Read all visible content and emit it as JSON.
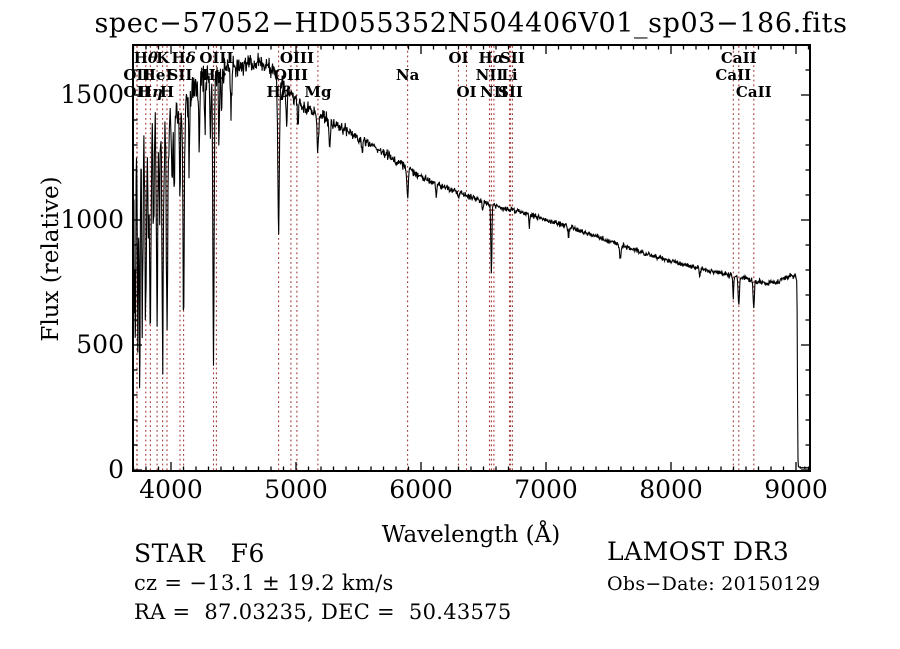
{
  "title": "spec−57052−HD055352N504406V01_sp03−186.fits",
  "annotations": {
    "class_label": "STAR   F6",
    "cz": "cz = −13.1 ± 19.2 km/s",
    "radec": "RA =  87.03235, DEC =  50.43575",
    "survey": "LAMOST DR3",
    "obs_date": "Obs−Date: 20150129"
  },
  "chart_data": {
    "type": "line",
    "title": "spec−57052−HD055352N504406V01_sp03−186.fits",
    "xlabel": "Wavelength (Å)",
    "ylabel": "Flux (relative)",
    "xlim": [
      3696,
      9112
    ],
    "ylim": [
      0,
      1700
    ],
    "x_major_ticks": [
      4000,
      5000,
      6000,
      7000,
      8000,
      9000
    ],
    "x_minor_step": 100,
    "y_major_ticks": [
      0,
      500,
      1000,
      1500
    ],
    "y_minor_step": 100,
    "grid": false,
    "legend": "none",
    "line_color": "#000000",
    "marker_line_color": "#a53a37",
    "spectral_lines": [
      {
        "label": "OII",
        "wavelength": 3727,
        "row": 2
      },
      {
        "label": "OII",
        "wavelength": 3729,
        "row": 3
      },
      {
        "label": "Hθ",
        "wavelength": 3798,
        "row": 1
      },
      {
        "label": "Hη",
        "wavelength": 3835,
        "row": 3
      },
      {
        "label": "HeI",
        "wavelength": 3889,
        "row": 2
      },
      {
        "label": "K",
        "wavelength": 3933,
        "row": 1
      },
      {
        "label": "H",
        "wavelength": 3968,
        "row": 3
      },
      {
        "label": "SII",
        "wavelength": 4072,
        "row": 2
      },
      {
        "label": "Hδ",
        "wavelength": 4101,
        "row": 1
      },
      {
        "label": "Hγ",
        "wavelength": 4340,
        "row": 2
      },
      {
        "label": "OIII",
        "wavelength": 4363,
        "row": 1
      },
      {
        "label": "Hβ",
        "wavelength": 4861,
        "row": 3
      },
      {
        "label": "OIII",
        "wavelength": 4959,
        "row": 2
      },
      {
        "label": "OIII",
        "wavelength": 5007,
        "row": 1
      },
      {
        "label": "Mg",
        "wavelength": 5175,
        "row": 3
      },
      {
        "label": "Na",
        "wavelength": 5893,
        "row": 2
      },
      {
        "label": "OI",
        "wavelength": 6300,
        "row": 1
      },
      {
        "label": "OI",
        "wavelength": 6364,
        "row": 3
      },
      {
        "label": "NII",
        "wavelength": 6548,
        "row": 2
      },
      {
        "label": "Hα",
        "wavelength": 6563,
        "row": 1
      },
      {
        "label": "NII",
        "wavelength": 6583,
        "row": 3
      },
      {
        "label": "Li",
        "wavelength": 6708,
        "row": 2
      },
      {
        "label": "SII",
        "wavelength": 6716,
        "row": 3
      },
      {
        "label": "SII",
        "wavelength": 6731,
        "row": 1
      },
      {
        "label": "CaII",
        "wavelength": 8498,
        "row": 2
      },
      {
        "label": "CaII",
        "wavelength": 8542,
        "row": 1
      },
      {
        "label": "CaII",
        "wavelength": 8662,
        "row": 3
      }
    ],
    "continuum_points": [
      [
        3696,
        950
      ],
      [
        3705,
        1150
      ],
      [
        3730,
        1230
      ],
      [
        3780,
        1275
      ],
      [
        3850,
        1305
      ],
      [
        3920,
        1335
      ],
      [
        3990,
        1365
      ],
      [
        4060,
        1430
      ],
      [
        4150,
        1505
      ],
      [
        4260,
        1560
      ],
      [
        4400,
        1595
      ],
      [
        4550,
        1618
      ],
      [
        4700,
        1632
      ],
      [
        4800,
        1605
      ],
      [
        4870,
        1560
      ],
      [
        4950,
        1505
      ],
      [
        5050,
        1455
      ],
      [
        5175,
        1425
      ],
      [
        5300,
        1385
      ],
      [
        5450,
        1345
      ],
      [
        5600,
        1302
      ],
      [
        5750,
        1252
      ],
      [
        5900,
        1202
      ],
      [
        6050,
        1158
      ],
      [
        6200,
        1128
      ],
      [
        6350,
        1102
      ],
      [
        6500,
        1072
      ],
      [
        6650,
        1048
      ],
      [
        6800,
        1032
      ],
      [
        6950,
        1008
      ],
      [
        7100,
        986
      ],
      [
        7250,
        962
      ],
      [
        7400,
        936
      ],
      [
        7550,
        908
      ],
      [
        7700,
        882
      ],
      [
        7850,
        858
      ],
      [
        8000,
        836
      ],
      [
        8150,
        816
      ],
      [
        8300,
        798
      ],
      [
        8450,
        782
      ],
      [
        8600,
        766
      ],
      [
        8750,
        748
      ],
      [
        8850,
        752
      ],
      [
        8950,
        778
      ],
      [
        9000,
        774
      ],
      [
        9008,
        752
      ],
      [
        9011,
        420
      ],
      [
        9014,
        60
      ],
      [
        9020,
        10
      ],
      [
        9112,
        8
      ]
    ],
    "absorption_lines": [
      [
        3712,
        760,
        4
      ],
      [
        3734,
        800,
        4
      ],
      [
        3750,
        760,
        4
      ],
      [
        3771,
        700,
        4
      ],
      [
        3798,
        700,
        5
      ],
      [
        3820,
        340,
        4
      ],
      [
        3835,
        700,
        5
      ],
      [
        3860,
        300,
        4
      ],
      [
        3889,
        740,
        5
      ],
      [
        3907,
        300,
        4
      ],
      [
        3933,
        880,
        5
      ],
      [
        3968,
        850,
        5
      ],
      [
        4009,
        240,
        4
      ],
      [
        4026,
        300,
        4
      ],
      [
        4072,
        340,
        4
      ],
      [
        4101,
        920,
        5
      ],
      [
        4144,
        250,
        4
      ],
      [
        4226,
        260,
        4
      ],
      [
        4272,
        200,
        4
      ],
      [
        4315,
        240,
        4
      ],
      [
        4340,
        1200,
        5
      ],
      [
        4383,
        250,
        4
      ],
      [
        4405,
        180,
        4
      ],
      [
        4481,
        160,
        4
      ],
      [
        4861,
        620,
        6
      ],
      [
        4925,
        140,
        5
      ],
      [
        5015,
        90,
        5
      ],
      [
        5175,
        145,
        7
      ],
      [
        5270,
        90,
        5
      ],
      [
        5530,
        60,
        5
      ],
      [
        5893,
        128,
        5
      ],
      [
        6122,
        45,
        4
      ],
      [
        6300,
        30,
        4
      ],
      [
        6494,
        40,
        4
      ],
      [
        6563,
        278,
        4
      ],
      [
        6867,
        45,
        5
      ],
      [
        7180,
        35,
        5
      ],
      [
        7594,
        55,
        6
      ],
      [
        8230,
        30,
        5
      ],
      [
        8498,
        88,
        4
      ],
      [
        8542,
        118,
        5
      ],
      [
        8662,
        108,
        5
      ]
    ],
    "noise_profile": [
      [
        3696,
        3732,
        420
      ],
      [
        3732,
        3800,
        260
      ],
      [
        3800,
        3930,
        170
      ],
      [
        3930,
        4000,
        140
      ],
      [
        4000,
        4200,
        95
      ],
      [
        4200,
        4500,
        70
      ],
      [
        4500,
        4900,
        48
      ],
      [
        4900,
        5400,
        33
      ],
      [
        5400,
        5900,
        24
      ],
      [
        5900,
        6500,
        17
      ],
      [
        6500,
        7200,
        14
      ],
      [
        7200,
        8400,
        12
      ],
      [
        8400,
        9004,
        13
      ],
      [
        9004,
        9112,
        3
      ]
    ],
    "sample_step": 3.5,
    "random_seed": 987241
  }
}
